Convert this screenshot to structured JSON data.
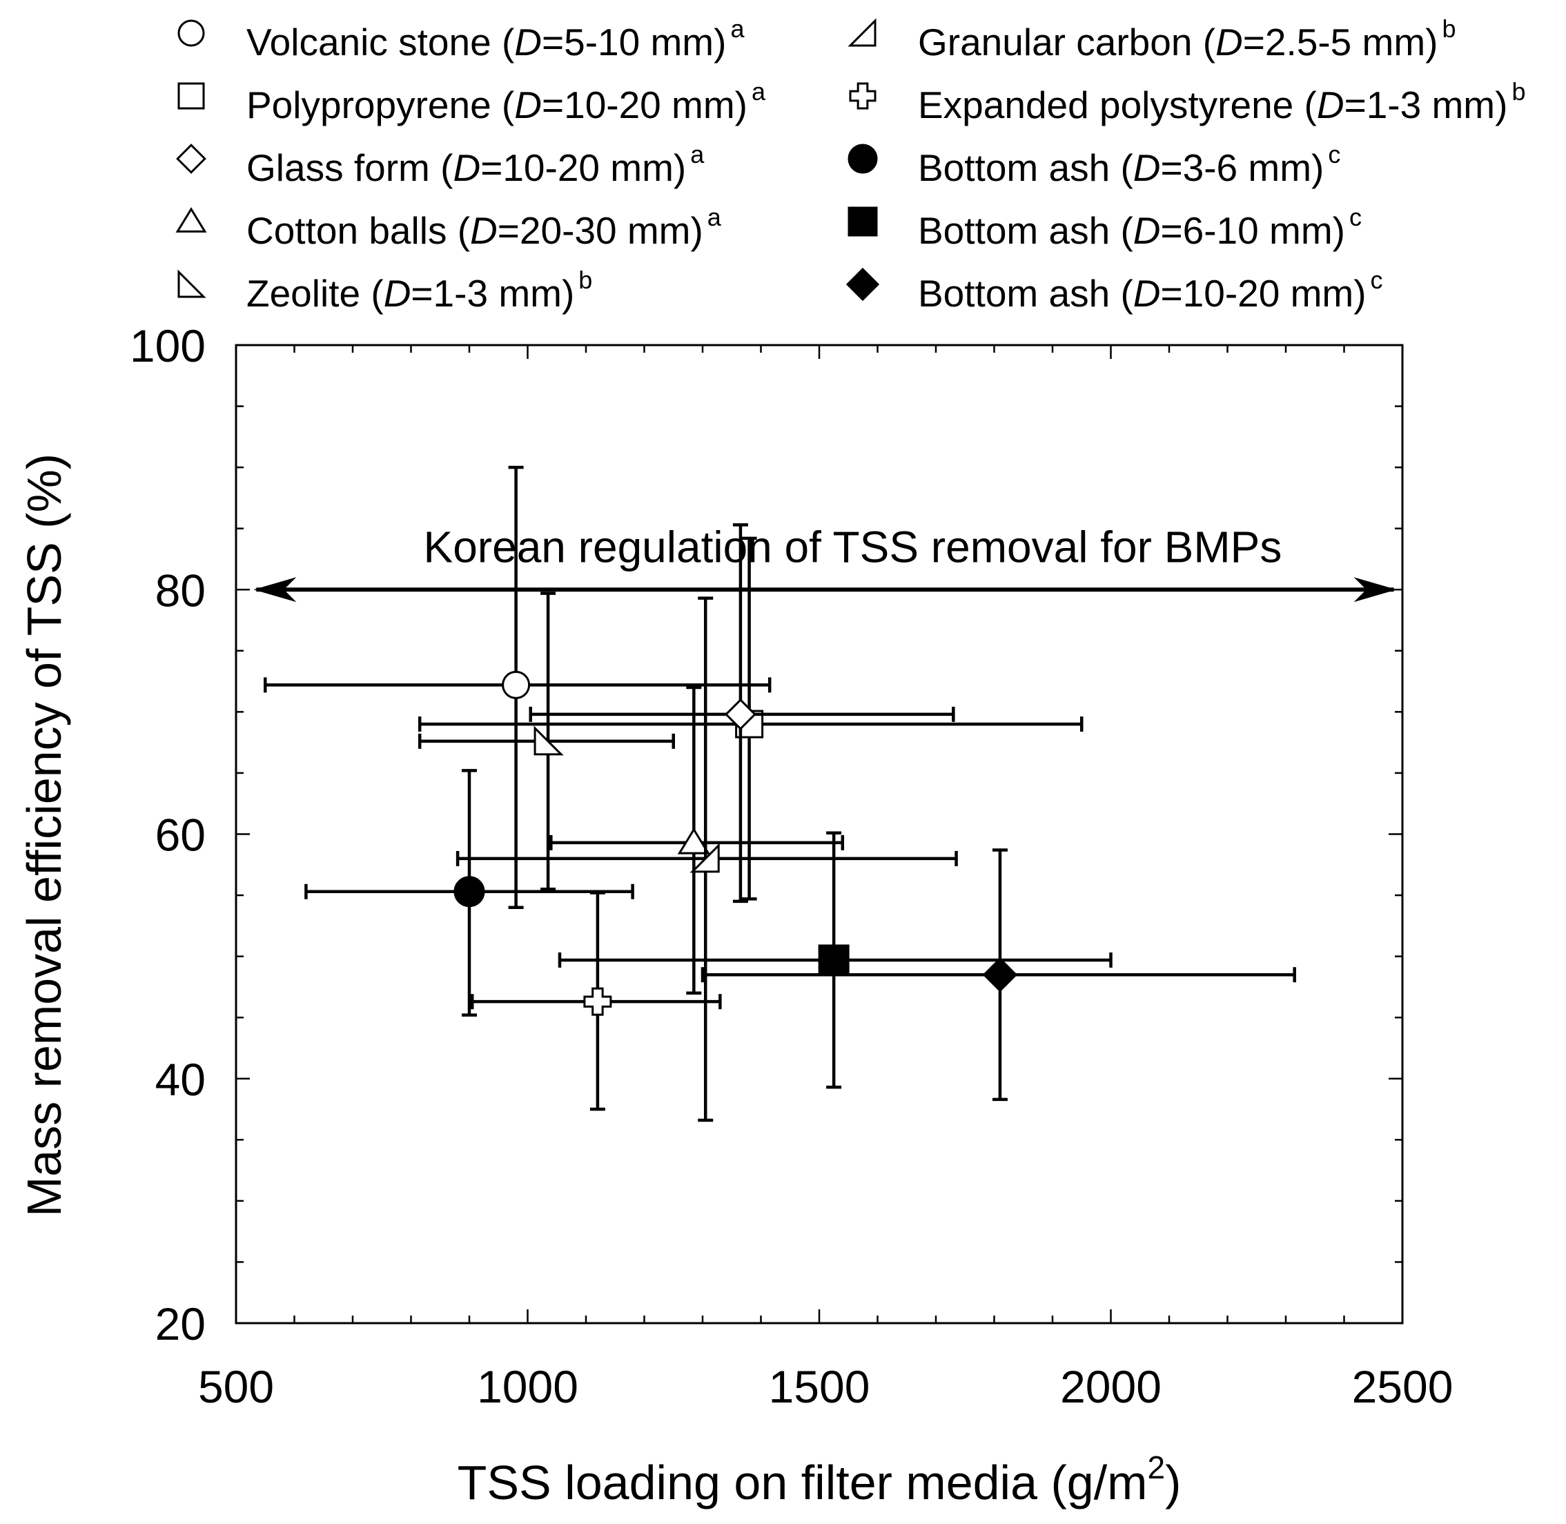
{
  "chart_data": {
    "type": "scatter",
    "xlabel": "TSS loading on filter media (g/m",
    "xlabel_sup": "2",
    "xlabel_end": ")",
    "ylabel": "Mass removal efficiency of TSS (%)",
    "xlim": [
      500,
      2500
    ],
    "ylim": [
      20,
      100
    ],
    "xticks": [
      500,
      1000,
      1500,
      2000,
      2500
    ],
    "xtick_labels": [
      "500",
      "1000",
      "1500",
      "2000",
      "2500"
    ],
    "yticks": [
      20,
      40,
      60,
      80,
      100
    ],
    "ytick_labels": [
      "20",
      "40",
      "60",
      "80",
      "100"
    ],
    "x_minor_step": 100,
    "y_minor_step": 5,
    "grid": false,
    "legend_position": "top",
    "annotation": {
      "text": "Korean regulation of TSS removal for BMPs",
      "y": 80,
      "x_from": 530,
      "x_to": 2490,
      "style": "double-arrow"
    },
    "series": [
      {
        "name": "Volcanic stone",
        "prefix": "Volcanic stone (",
        "size": "=5-10 mm)",
        "note": "a",
        "marker": "circle",
        "fill": "open",
        "x": 980,
        "y": 72.2,
        "xerr": [
          550,
          1415
        ],
        "yerr": [
          54,
          90
        ]
      },
      {
        "name": "Polypropyrene",
        "prefix": "Polypropyrene (",
        "size": "=10-20 mm)",
        "note": "a",
        "marker": "square",
        "fill": "open",
        "x": 1380,
        "y": 69,
        "xerr": [
          815,
          1950
        ],
        "yerr": [
          54.7,
          84.2
        ]
      },
      {
        "name": "Glass form",
        "prefix": "Glass form (",
        "size": "=10-20 mm)",
        "note": "a",
        "marker": "diamond",
        "fill": "open",
        "x": 1365,
        "y": 69.8,
        "xerr": [
          1005,
          1730
        ],
        "yerr": [
          54.5,
          85.3
        ]
      },
      {
        "name": "Cotton balls",
        "prefix": "Cotton balls (",
        "size": "=20-30 mm)",
        "note": "a",
        "marker": "triangle",
        "fill": "open",
        "x": 1285,
        "y": 59.3,
        "xerr": [
          1040,
          1540
        ],
        "yerr": [
          47,
          72
        ]
      },
      {
        "name": "Zeolite",
        "prefix": "Zeolite (",
        "size": "=1-3 mm)",
        "note": "b",
        "marker": "zeolite",
        "fill": "open",
        "x": 1035,
        "y": 67.6,
        "xerr": [
          815,
          1250
        ],
        "yerr": [
          55.5,
          79.7
        ]
      },
      {
        "name": "Granular carbon",
        "prefix": "Granular carbon (",
        "size": "=2.5-5 mm)",
        "note": "b",
        "marker": "carbon",
        "fill": "open",
        "x": 1305,
        "y": 58,
        "xerr": [
          880,
          1735
        ],
        "yerr": [
          36.6,
          79.3
        ]
      },
      {
        "name": "Expanded polystyrene",
        "prefix": "Expanded polystyrene (",
        "size": "=1-3 mm)",
        "note": "b",
        "marker": "cross",
        "fill": "open",
        "x": 1120,
        "y": 46.3,
        "xerr": [
          905,
          1330
        ],
        "yerr": [
          37.5,
          55.2
        ]
      },
      {
        "name": "Bottom ash (D=3-6 mm)",
        "prefix": "Bottom ash (",
        "size": "=3-6 mm)",
        "note": "c",
        "marker": "circle",
        "fill": "solid",
        "x": 900,
        "y": 55.3,
        "xerr": [
          620,
          1180
        ],
        "yerr": [
          45.2,
          65.2
        ]
      },
      {
        "name": "Bottom ash (D=6-10 mm)",
        "prefix": "Bottom ash (",
        "size": "=6-10 mm)",
        "note": "c",
        "marker": "square",
        "fill": "solid",
        "x": 1525,
        "y": 49.7,
        "xerr": [
          1055,
          2000
        ],
        "yerr": [
          39.3,
          60.1
        ]
      },
      {
        "name": "Bottom ash (D=10-20 mm)",
        "prefix": "Bottom ash (",
        "size": "=10-20 mm)",
        "note": "c",
        "marker": "diamond",
        "fill": "solid",
        "x": 1810,
        "y": 48.5,
        "xerr": [
          1300,
          2315
        ],
        "yerr": [
          38.3,
          58.7
        ]
      }
    ],
    "legend_symbol": "D"
  }
}
